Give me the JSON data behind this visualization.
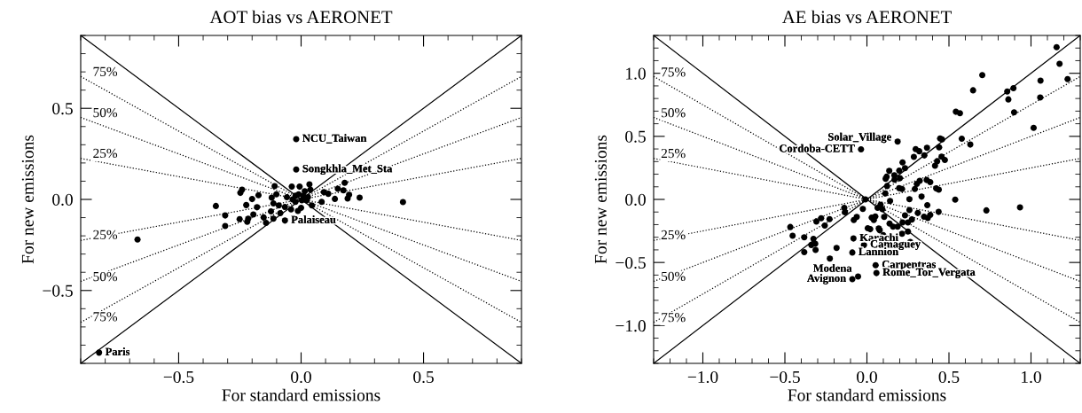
{
  "chart_data": [
    {
      "type": "scatter",
      "title": "AOT bias vs AERONET",
      "xlabel": "For standard emissions",
      "ylabel": "For new emissions",
      "xlim": [
        -0.9,
        0.9
      ],
      "ylim": [
        -0.9,
        0.9
      ],
      "xticks": [
        {
          "value": -0.5,
          "label": "−0.5"
        },
        {
          "value": 0.0,
          "label": "0.0"
        },
        {
          "value": 0.5,
          "label": "0.5"
        }
      ],
      "yticks": [
        {
          "value": -0.5,
          "label": "−0.5"
        },
        {
          "value": 0.0,
          "label": "0.0"
        },
        {
          "value": 0.5,
          "label": "0.5"
        }
      ],
      "series": [
        {
          "type": "line",
          "line_style": "solid",
          "color": "#000000",
          "x": [
            -0.9,
            0.9
          ],
          "values": [
            0.9,
            -0.9
          ]
        },
        {
          "type": "line",
          "line_style": "solid",
          "color": "#000000",
          "x": [
            -0.9,
            0.9
          ],
          "values": [
            -0.9,
            0.9
          ]
        },
        {
          "type": "line",
          "line_style": "dotted",
          "color": "#000000",
          "x": [
            -0.9,
            0.9
          ],
          "values": [
            0.675,
            -0.675
          ]
        },
        {
          "type": "line",
          "line_style": "dotted",
          "color": "#000000",
          "x": [
            -0.9,
            0.9
          ],
          "values": [
            0.45,
            -0.45
          ]
        },
        {
          "type": "line",
          "line_style": "dotted",
          "color": "#000000",
          "x": [
            -0.9,
            0.9
          ],
          "values": [
            0.225,
            -0.225
          ]
        },
        {
          "type": "line",
          "line_style": "dotted",
          "color": "#000000",
          "x": [
            -0.9,
            0.9
          ],
          "values": [
            -0.225,
            0.225
          ]
        },
        {
          "type": "line",
          "line_style": "dotted",
          "color": "#000000",
          "x": [
            -0.9,
            0.9
          ],
          "values": [
            -0.45,
            0.45
          ]
        },
        {
          "type": "line",
          "line_style": "dotted",
          "color": "#000000",
          "x": [
            -0.9,
            0.9
          ],
          "values": [
            -0.675,
            0.675
          ]
        },
        {
          "marker": "circle",
          "color": "#000000",
          "x": [
            -0.02,
            -0.02,
            -0.066,
            -0.825,
            0.416,
            -0.668,
            -0.348,
            -0.31,
            -0.31,
            -0.251,
            -0.22,
            -0.216,
            -0.248,
            -0.241,
            -0.224,
            -0.2,
            -0.174,
            -0.195,
            -0.18,
            -0.153,
            -0.143,
            -0.123,
            -0.113,
            -0.085,
            -0.108,
            -0.101,
            -0.12,
            -0.113,
            -0.091,
            -0.066,
            -0.058,
            -0.038,
            -0.041,
            -0.023,
            -0.01,
            -0.006,
            0.003,
            -0.013,
            0.0,
            0.015,
            0.023,
            0.034,
            0.038,
            0.044,
            0.084,
            0.093,
            0.111,
            0.138,
            0.15,
            0.173,
            0.178,
            0.196,
            0.19,
            0.239,
            -0.035,
            -0.023,
            0.009,
            0.028
          ],
          "values": [
            0.331,
            0.164,
            -0.116,
            -0.841,
            -0.015,
            -0.22,
            -0.036,
            -0.088,
            -0.146,
            -0.108,
            -0.123,
            -0.106,
            0.036,
            0.053,
            -0.031,
            0.002,
            0.023,
            -0.083,
            -0.043,
            -0.099,
            -0.129,
            -0.066,
            -0.106,
            -0.075,
            0.073,
            0.028,
            0.01,
            -0.022,
            -0.033,
            -0.041,
            0.012,
            0.07,
            -0.055,
            -0.013,
            0.028,
            0.07,
            -0.005,
            -0.063,
            -0.046,
            0.045,
            -0.005,
            0.083,
            0.053,
            -0.033,
            -0.013,
            0.04,
            0.031,
            0.003,
            0.058,
            0.05,
            0.091,
            0.025,
            0.005,
            0.01,
            0.0,
            0.02,
            0.02,
            0.012
          ]
        }
      ],
      "annotations": [
        {
          "text": "75%",
          "x": -0.8,
          "y": 0.695
        },
        {
          "text": "50%",
          "x": -0.8,
          "y": 0.47
        },
        {
          "text": "25%",
          "x": -0.8,
          "y": 0.247
        },
        {
          "text": "25%",
          "x": -0.8,
          "y": -0.2
        },
        {
          "text": "50%",
          "x": -0.8,
          "y": -0.43
        },
        {
          "text": "75%",
          "x": -0.8,
          "y": -0.65
        },
        {
          "text": "NCU_Taiwan",
          "x": -0.02,
          "y": 0.331
        },
        {
          "text": "Songkhla_Met_Sta",
          "x": -0.02,
          "y": 0.164
        },
        {
          "text": "Palaiseau",
          "x": -0.066,
          "y": -0.116
        },
        {
          "text": "Paris",
          "x": -0.825,
          "y": -0.841
        }
      ]
    },
    {
      "type": "scatter",
      "title": "AE bias vs AERONET",
      "xlabel": "For standard emissions",
      "ylabel": "For new emissions",
      "xlim": [
        -1.3,
        1.3
      ],
      "ylim": [
        -1.3,
        1.3
      ],
      "xticks": [
        {
          "value": -1.0,
          "label": "−1.0"
        },
        {
          "value": -0.5,
          "label": "−0.5"
        },
        {
          "value": 0.0,
          "label": "0.0"
        },
        {
          "value": 0.5,
          "label": "0.5"
        },
        {
          "value": 1.0,
          "label": "1.0"
        }
      ],
      "yticks": [
        {
          "value": -1.0,
          "label": "−1.0"
        },
        {
          "value": -0.5,
          "label": "−0.5"
        },
        {
          "value": 0.0,
          "label": "0.0"
        },
        {
          "value": 0.5,
          "label": "0.5"
        },
        {
          "value": 1.0,
          "label": "1.0"
        }
      ],
      "series": [
        {
          "type": "line",
          "line_style": "solid",
          "color": "#000000",
          "x": [
            -1.3,
            1.3
          ],
          "values": [
            1.3,
            -1.3
          ]
        },
        {
          "type": "line",
          "line_style": "solid",
          "color": "#000000",
          "x": [
            -1.3,
            1.3
          ],
          "values": [
            -1.3,
            1.3
          ]
        },
        {
          "type": "line",
          "line_style": "dotted",
          "color": "#000000",
          "x": [
            -1.3,
            1.3
          ],
          "values": [
            0.975,
            -0.975
          ]
        },
        {
          "type": "line",
          "line_style": "dotted",
          "color": "#000000",
          "x": [
            -1.3,
            1.3
          ],
          "values": [
            0.65,
            -0.65
          ]
        },
        {
          "type": "line",
          "line_style": "dotted",
          "color": "#000000",
          "x": [
            -1.3,
            1.3
          ],
          "values": [
            0.325,
            -0.325
          ]
        },
        {
          "type": "line",
          "line_style": "dotted",
          "color": "#000000",
          "x": [
            -1.3,
            1.3
          ],
          "values": [
            -0.325,
            0.325
          ]
        },
        {
          "type": "line",
          "line_style": "dotted",
          "color": "#000000",
          "x": [
            -1.3,
            1.3
          ],
          "values": [
            -0.65,
            0.65
          ]
        },
        {
          "type": "line",
          "line_style": "dotted",
          "color": "#000000",
          "x": [
            -1.3,
            1.3
          ],
          "values": [
            -0.975,
            0.975
          ]
        },
        {
          "marker": "circle",
          "color": "#000000",
          "x": [
            0.187,
            -0.036,
            -0.082,
            -0.018,
            -0.089,
            0.053,
            0.058,
            -0.054,
            -0.089,
            1.156,
            1.174,
            1.223,
            1.058,
            1.056,
            0.703,
            0.647,
            0.855,
            0.893,
            0.862,
            0.897,
            1.016,
            0.542,
            0.567,
            0.578,
            0.63,
            0.446,
            0.458,
            0.44,
            0.366,
            0.297,
            0.319,
            0.286,
            0.35,
            0.415,
            0.428,
            0.455,
            0.475,
            0.217,
            0.232,
            0.197,
            0.136,
            0.167,
            0.114,
            0.12,
            0.168,
            0.201,
            0.123,
            0.196,
            0.214,
            0.112,
            0.141,
            0.292,
            0.304,
            0.322,
            0.364,
            0.386,
            0.422,
            0.438,
            0.333,
            0.259,
            0.538,
            0.728,
            0.933,
            0.368,
            0.259,
            0.31,
            0.437,
            0.232,
            0.348,
            0.371,
            0.386,
            0.274,
            0.25,
            0.217,
            0.25,
            0.214,
            0.264,
            0.187,
            0.159,
            0.138,
            0.105,
            0.1,
            0.072,
            0.078,
            0.042,
            0.065,
            0.083,
            0.094,
            0.029,
            0.02,
            0.005,
            0.051,
            -0.009,
            -0.025,
            -0.062,
            -0.08,
            -0.138,
            -0.134,
            -0.228,
            -0.257,
            -0.279,
            -0.308,
            -0.185,
            -0.226,
            -0.326,
            -0.315,
            -0.339,
            -0.313,
            -0.382,
            -0.382,
            -0.467,
            -0.453
          ],
          "values": [
            0.459,
            0.397,
            -0.31,
            -0.361,
            -0.421,
            -0.522,
            -0.584,
            -0.611,
            -0.632,
            1.207,
            1.075,
            0.954,
            0.942,
            0.808,
            0.986,
            0.865,
            0.856,
            0.882,
            0.793,
            0.69,
            0.567,
            0.695,
            0.683,
            0.481,
            0.435,
            0.483,
            0.476,
            0.413,
            0.409,
            0.399,
            0.382,
            0.337,
            0.349,
            0.267,
            0.303,
            0.339,
            0.313,
            0.293,
            0.248,
            0.228,
            0.226,
            0.192,
            0.163,
            0.18,
            0.156,
            0.168,
            0.106,
            0.089,
            0.082,
            0.048,
            -0.012,
            0.082,
            0.123,
            0.147,
            0.154,
            0.137,
            0.087,
            0.077,
            0.022,
            0.002,
            -0.002,
            -0.087,
            -0.063,
            -0.046,
            -0.084,
            -0.108,
            -0.099,
            -0.127,
            -0.137,
            -0.147,
            -0.123,
            -0.159,
            -0.183,
            -0.183,
            -0.255,
            -0.272,
            -0.337,
            -0.216,
            -0.216,
            -0.192,
            -0.139,
            -0.284,
            -0.231,
            -0.245,
            -0.163,
            -0.067,
            -0.043,
            -0.077,
            -0.144,
            -0.236,
            -0.228,
            -0.135,
            0.0,
            -0.075,
            -0.139,
            -0.163,
            -0.067,
            -0.101,
            -0.156,
            -0.207,
            -0.149,
            -0.175,
            -0.385,
            -0.469,
            -0.313,
            -0.351,
            -0.361,
            -0.401,
            -0.3,
            -0.418,
            -0.219,
            -0.288
          ]
        }
      ],
      "annotations": [
        {
          "text": "75%",
          "x": -1.18,
          "y": 1.0
        },
        {
          "text": "50%",
          "x": -1.18,
          "y": 0.678
        },
        {
          "text": "25%",
          "x": -1.18,
          "y": 0.356
        },
        {
          "text": "25%",
          "x": -1.18,
          "y": -0.29
        },
        {
          "text": "50%",
          "x": -1.18,
          "y": -0.62
        },
        {
          "text": "75%",
          "x": -1.18,
          "y": -0.945
        },
        {
          "text": "Solar_Village",
          "x": 0.187,
          "y": 0.459
        },
        {
          "text": "Cordoba-CETT",
          "x": -0.036,
          "y": 0.397
        },
        {
          "text": "Karachi",
          "x": -0.082,
          "y": -0.31
        },
        {
          "text": "Camaguey",
          "x": -0.018,
          "y": -0.361
        },
        {
          "text": "Lannion",
          "x": -0.089,
          "y": -0.421
        },
        {
          "text": "Carpentras",
          "x": 0.053,
          "y": -0.522
        },
        {
          "text": "Rome_Tor_Vergata",
          "x": 0.058,
          "y": -0.584
        },
        {
          "text": "Modena",
          "x": -0.054,
          "y": -0.611
        },
        {
          "text": "Avignon",
          "x": -0.089,
          "y": -0.632
        }
      ]
    }
  ]
}
